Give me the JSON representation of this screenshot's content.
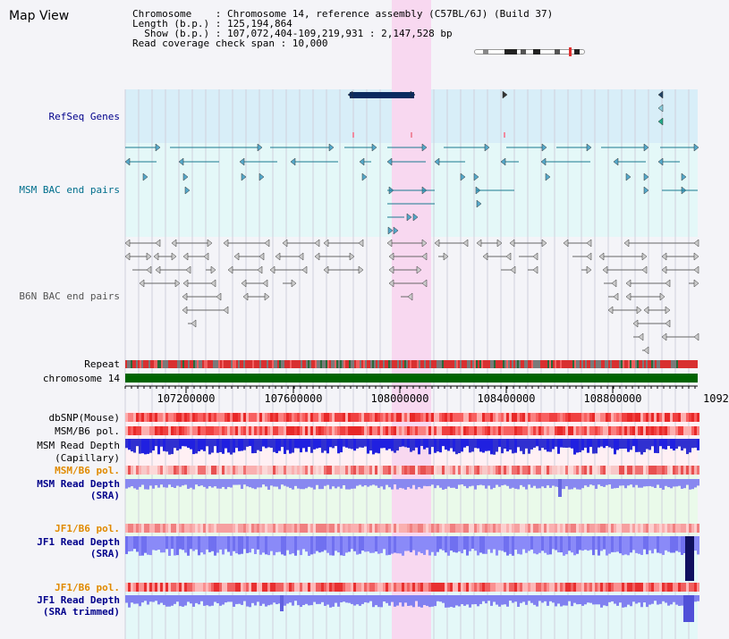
{
  "title": "Map View",
  "info": {
    "line1": "Chromosome    : Chromosome 14, reference assembly (C57BL/6J) (Build 37)",
    "line2": "Length (b.p.) : 125,194,864",
    "line3": "  Show (b.p.) : 107,072,404-109,219,931 : 2,147,528 bp",
    "line4": "Read coverage check span : 10,000"
  },
  "tracks": {
    "refseq": "RefSeq Genes",
    "msm_bac": "MSM BAC end pairs",
    "b6n_bac": "B6N BAC end pairs",
    "repeat": "Repeat",
    "chromosome": "chromosome 14",
    "dbsnp": "dbSNP(Mouse)",
    "msm_b6_pol_1": "MSM/B6 pol.",
    "msm_depth_cap_1": "MSM Read Depth",
    "msm_depth_cap_2": "(Capillary)",
    "msm_b6_pol_2": "MSM/B6 pol.",
    "msm_depth_sra_1": "MSM Read Depth",
    "msm_depth_sra_2": "(SRA)",
    "jf1_b6_pol_1": "JF1/B6 pol.",
    "jf1_depth_sra_1": "JF1 Read Depth",
    "jf1_depth_sra_2": "(SRA)",
    "jf1_b6_pol_2": "JF1/B6 pol.",
    "jf1_depth_trim_1": "JF1 Read Depth",
    "jf1_depth_trim_2": "(SRA trimmed)"
  },
  "axis": {
    "ticks": [
      "107200000",
      "107600000",
      "108000000",
      "108400000",
      "108800000",
      "1092"
    ]
  },
  "colors": {
    "navy_label": "#00008b",
    "teal_label": "#006e8c",
    "gray_label": "#555555",
    "orange_label": "#e08a00",
    "highlight": "#f8d8f0",
    "chromosome_bar": "#006400"
  }
}
